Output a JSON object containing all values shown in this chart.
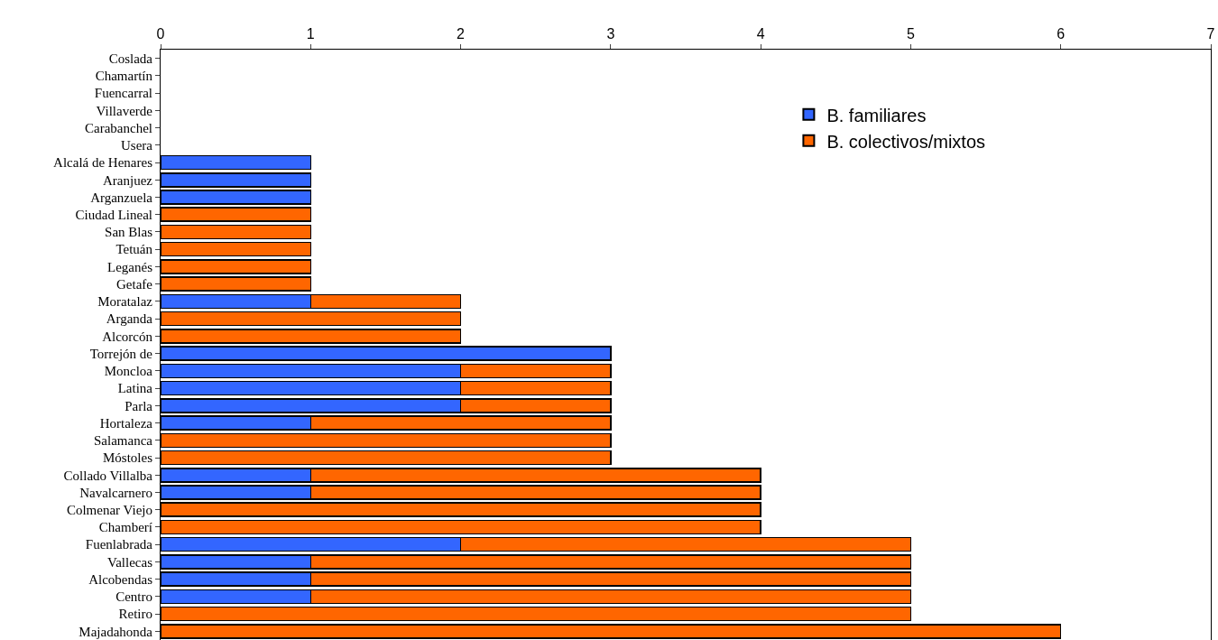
{
  "chart_data": {
    "type": "bar",
    "orientation": "horizontal",
    "stacked": true,
    "categories": [
      "Coslada",
      "Chamartín",
      "Fuencarral",
      "Villaverde",
      "Carabanchel",
      "Usera",
      "Alcalá de Henares",
      "Aranjuez",
      "Arganzuela",
      "Ciudad Lineal",
      "San Blas",
      "Tetuán",
      "Leganés",
      "Getafe",
      "Moratalaz",
      "Arganda",
      "Alcorcón",
      "Torrejón de",
      "Moncloa",
      "Latina",
      "Parla",
      "Hortaleza",
      "Salamanca",
      "Móstoles",
      "Collado Villalba",
      "Navalcarnero",
      "Colmenar Viejo",
      "Chamberí",
      "Fuenlabrada",
      "Vallecas",
      "Alcobendas",
      "Centro",
      "Retiro",
      "Majadahonda"
    ],
    "series": [
      {
        "name": "B. familiares",
        "color": "#3366ff",
        "values": [
          null,
          null,
          null,
          null,
          null,
          null,
          1,
          1,
          1,
          null,
          null,
          null,
          null,
          null,
          1,
          null,
          null,
          3,
          2,
          2,
          2,
          1,
          null,
          null,
          1,
          1,
          null,
          null,
          2,
          1,
          1,
          1,
          null,
          null
        ]
      },
      {
        "name": "B. colectivos/mixtos",
        "color": "#ff6600",
        "values": [
          null,
          null,
          null,
          null,
          null,
          null,
          null,
          null,
          null,
          1,
          1,
          1,
          1,
          1,
          1,
          2,
          2,
          null,
          1,
          1,
          1,
          2,
          3,
          3,
          3,
          3,
          4,
          4,
          3,
          4,
          4,
          4,
          5,
          6
        ]
      }
    ],
    "xlim": [
      0,
      7
    ],
    "xticks": [
      0,
      1,
      2,
      3,
      4,
      5,
      6,
      7
    ],
    "legend": "top right"
  }
}
